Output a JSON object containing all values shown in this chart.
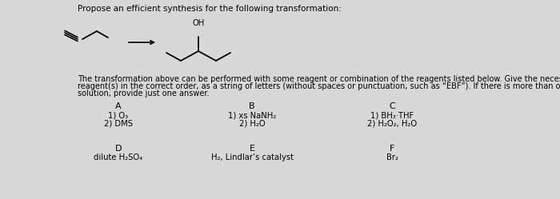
{
  "title": "Propose an efficient synthesis for the following transformation:",
  "description_line1": "The transformation above can be performed with some reagent or combination of the reagents listed below. Give the necessary",
  "description_line2": "reagent(s) in the correct order, as a string of letters (without spaces or punctuation, such as “EBF”). If there is more than one correct",
  "description_line3": "solution, provide just one answer.",
  "bg_color": "#d8d8d8",
  "reagents": [
    {
      "label": "A",
      "lines": [
        "1) O₃",
        "2) DMS"
      ],
      "col": 0
    },
    {
      "label": "B",
      "lines": [
        "1) xs NaNH₂",
        "2) H₂O"
      ],
      "col": 1
    },
    {
      "label": "C",
      "lines": [
        "1) BH₃·THF",
        "2) H₂O₂, H₂O"
      ],
      "col": 2
    },
    {
      "label": "D",
      "lines": [
        "dilute H₂SO₄"
      ],
      "col": 0
    },
    {
      "label": "E",
      "lines": [
        "H₂, Lindlar’s catalyst"
      ],
      "col": 1
    },
    {
      "label": "F",
      "lines": [
        "Br₂"
      ],
      "col": 2
    }
  ],
  "font_size_title": 7.5,
  "font_size_body": 7.0,
  "font_size_reagent_label": 8.0,
  "font_size_reagent_text": 7.2
}
